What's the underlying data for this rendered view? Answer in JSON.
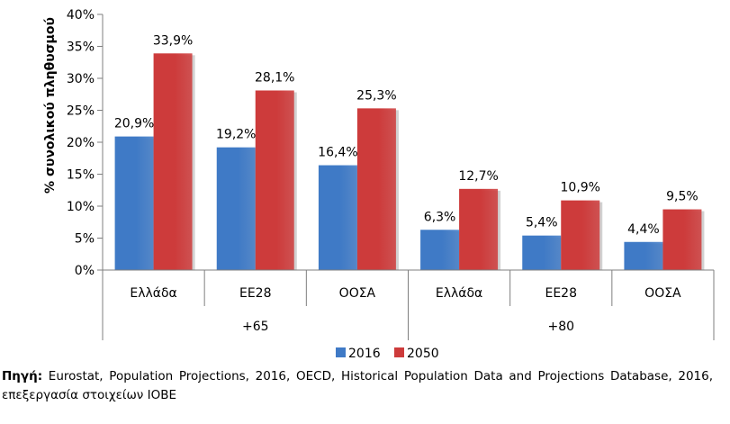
{
  "chart_data": {
    "type": "bar",
    "ylabel": "% συνολικού πληθυσμού",
    "ylim": [
      0,
      40
    ],
    "yticks": [
      0,
      5,
      10,
      15,
      20,
      25,
      30,
      35,
      40
    ],
    "ytick_labels": [
      "0%",
      "5%",
      "10%",
      "15%",
      "20%",
      "25%",
      "30%",
      "35%",
      "40%"
    ],
    "groups": [
      "+65",
      "+80"
    ],
    "categories": [
      "Ελλάδα",
      "ΕΕ28",
      "ΟΟΣΑ",
      "Ελλάδα",
      "ΕΕ28",
      "ΟΟΣΑ"
    ],
    "category_group": [
      0,
      0,
      0,
      1,
      1,
      1
    ],
    "series": [
      {
        "name": "2016",
        "color": "#3f7ac6",
        "values": [
          20.9,
          19.2,
          16.4,
          6.3,
          5.4,
          4.4
        ],
        "labels": [
          "20,9%",
          "19,2%",
          "16,4%",
          "6,3%",
          "5,4%",
          "4,4%"
        ]
      },
      {
        "name": "2050",
        "color": "#cd3b3b",
        "values": [
          33.9,
          28.1,
          25.3,
          12.7,
          10.9,
          9.5
        ],
        "labels": [
          "33,9%",
          "28,1%",
          "25,3%",
          "12,7%",
          "10,9%",
          "9,5%"
        ]
      }
    ],
    "legend": "bottom",
    "grid": false
  },
  "source": {
    "lead": "Πηγή:",
    "text": " Eurostat, Population Projections, 2016, OECD, Historical Population Data and Projections Database, 2016, επεξεργασία στοιχείων ΙΟΒΕ"
  }
}
